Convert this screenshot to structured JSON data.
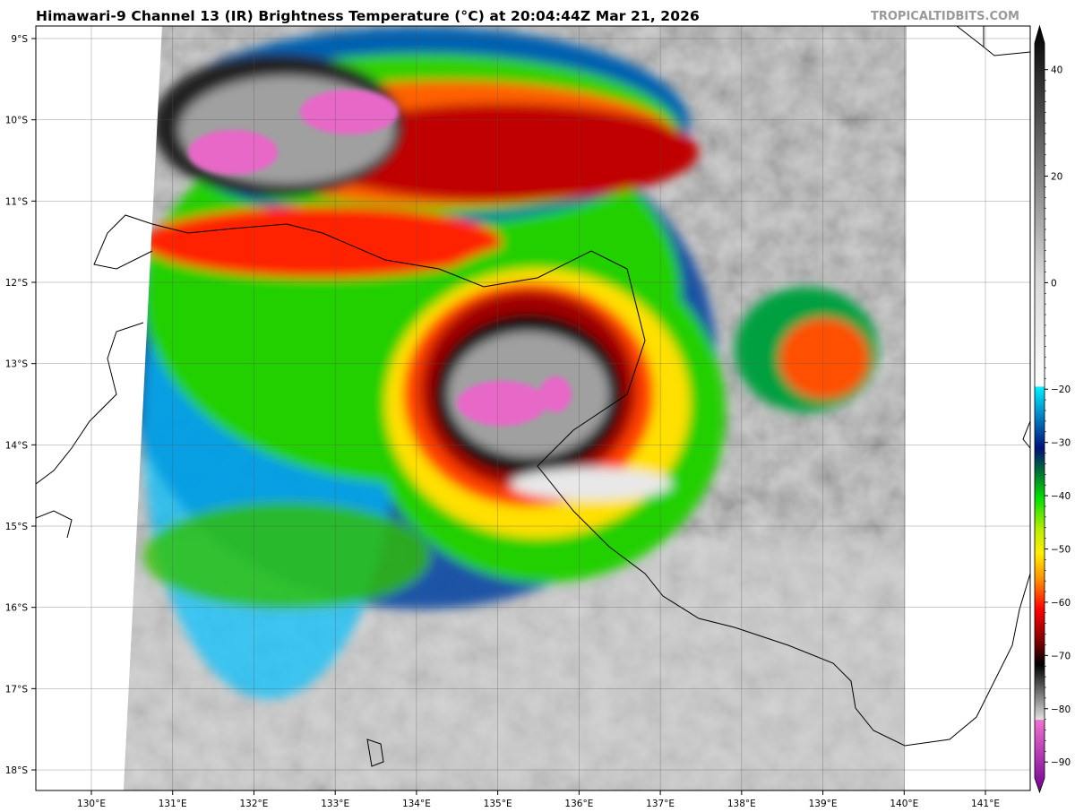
{
  "title": "Himawari-9 Channel 13 (IR) Brightness Temperature (°C) at 20:04:44Z Mar 21, 2026",
  "watermark": "TROPICALTIDBITS.COM",
  "map": {
    "lat_labels": [
      "9°S",
      "10°S",
      "11°S",
      "12°S",
      "13°S",
      "14°S",
      "15°S",
      "16°S",
      "17°S",
      "18°S"
    ],
    "lat_values": [
      -9,
      -10,
      -11,
      -12,
      -13,
      -14,
      -15,
      -16,
      -17,
      -18
    ],
    "lon_labels": [
      "130°E",
      "131°E",
      "132°E",
      "133°E",
      "134°E",
      "135°E",
      "136°E",
      "137°E",
      "138°E",
      "139°E",
      "140°E",
      "141°E"
    ],
    "lon_values": [
      130,
      131,
      132,
      133,
      134,
      135,
      136,
      137,
      138,
      139,
      140,
      141
    ],
    "gridlines": true
  },
  "colorbar": {
    "ticks": [
      "40",
      "20",
      "0",
      "−20",
      "−30",
      "−40",
      "−50",
      "−60",
      "−70",
      "−80",
      "−90"
    ],
    "tick_values": [
      40,
      20,
      0,
      -20,
      -30,
      -40,
      -50,
      -60,
      -70,
      -80,
      -90
    ],
    "range": [
      -93,
      45
    ],
    "stops": [
      {
        "v": 45,
        "c": "#000000"
      },
      {
        "v": 0,
        "c": "#d8d8d8"
      },
      {
        "v": -19.9,
        "c": "#ffffff"
      },
      {
        "v": -20,
        "c": "#00f0ff"
      },
      {
        "v": -27,
        "c": "#0060b0"
      },
      {
        "v": -31,
        "c": "#00107a"
      },
      {
        "v": -35,
        "c": "#006a3a"
      },
      {
        "v": -40,
        "c": "#00e000"
      },
      {
        "v": -46,
        "c": "#c0f000"
      },
      {
        "v": -50,
        "c": "#ffee00"
      },
      {
        "v": -55,
        "c": "#ff8800"
      },
      {
        "v": -60,
        "c": "#ff0000"
      },
      {
        "v": -66,
        "c": "#7a0000"
      },
      {
        "v": -70,
        "c": "#000000"
      },
      {
        "v": -79.9,
        "c": "#e0e0e0"
      },
      {
        "v": -80,
        "c": "#f070d0"
      },
      {
        "v": -93,
        "c": "#700090"
      }
    ]
  }
}
